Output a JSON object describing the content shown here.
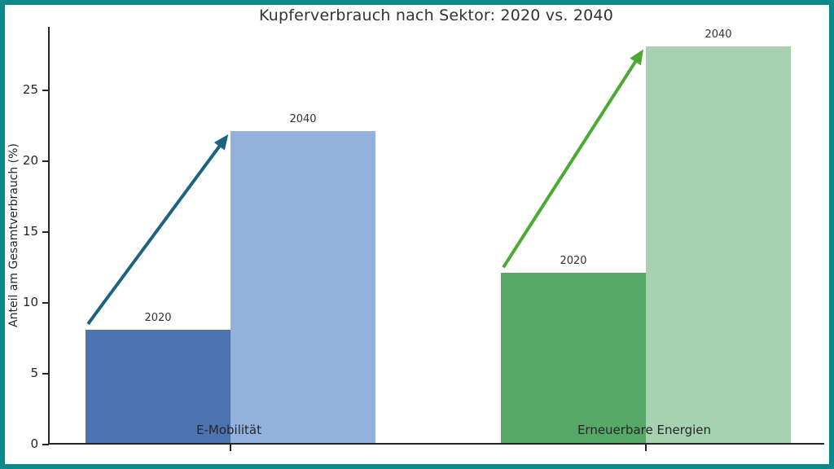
{
  "figure": {
    "background": "#ffffff",
    "border_color": "#0a8a8a"
  },
  "chart_data": {
    "type": "bar",
    "title": "Kupferverbrauch nach Sektor: 2020 vs. 2040",
    "xlabel": "",
    "ylabel": "Anteil am Gesamtverbrauch (%)",
    "categories": [
      "E-Mobilität",
      "Erneuerbare Energien"
    ],
    "series": [
      {
        "name": "2020",
        "values": [
          8,
          12
        ],
        "colors": [
          "#4c72b0",
          "#55a868"
        ]
      },
      {
        "name": "2040",
        "values": [
          22,
          28
        ],
        "colors": [
          "#92b2dc",
          "#a6d2b2"
        ]
      }
    ],
    "bar_top_labels": [
      "2020",
      "2040"
    ],
    "yticks": [
      0,
      5,
      10,
      15,
      20,
      25
    ],
    "ylim": [
      0,
      29.5
    ],
    "grid": false,
    "legend_position": "none",
    "arrows": [
      {
        "category": "E-Mobilität",
        "from": 8,
        "to": 22,
        "color": "#1a6480"
      },
      {
        "category": "Erneuerbare Energien",
        "from": 12,
        "to": 28,
        "color": "#4caa32"
      }
    ],
    "text_color": "#333333",
    "spine_color": "#262626"
  }
}
